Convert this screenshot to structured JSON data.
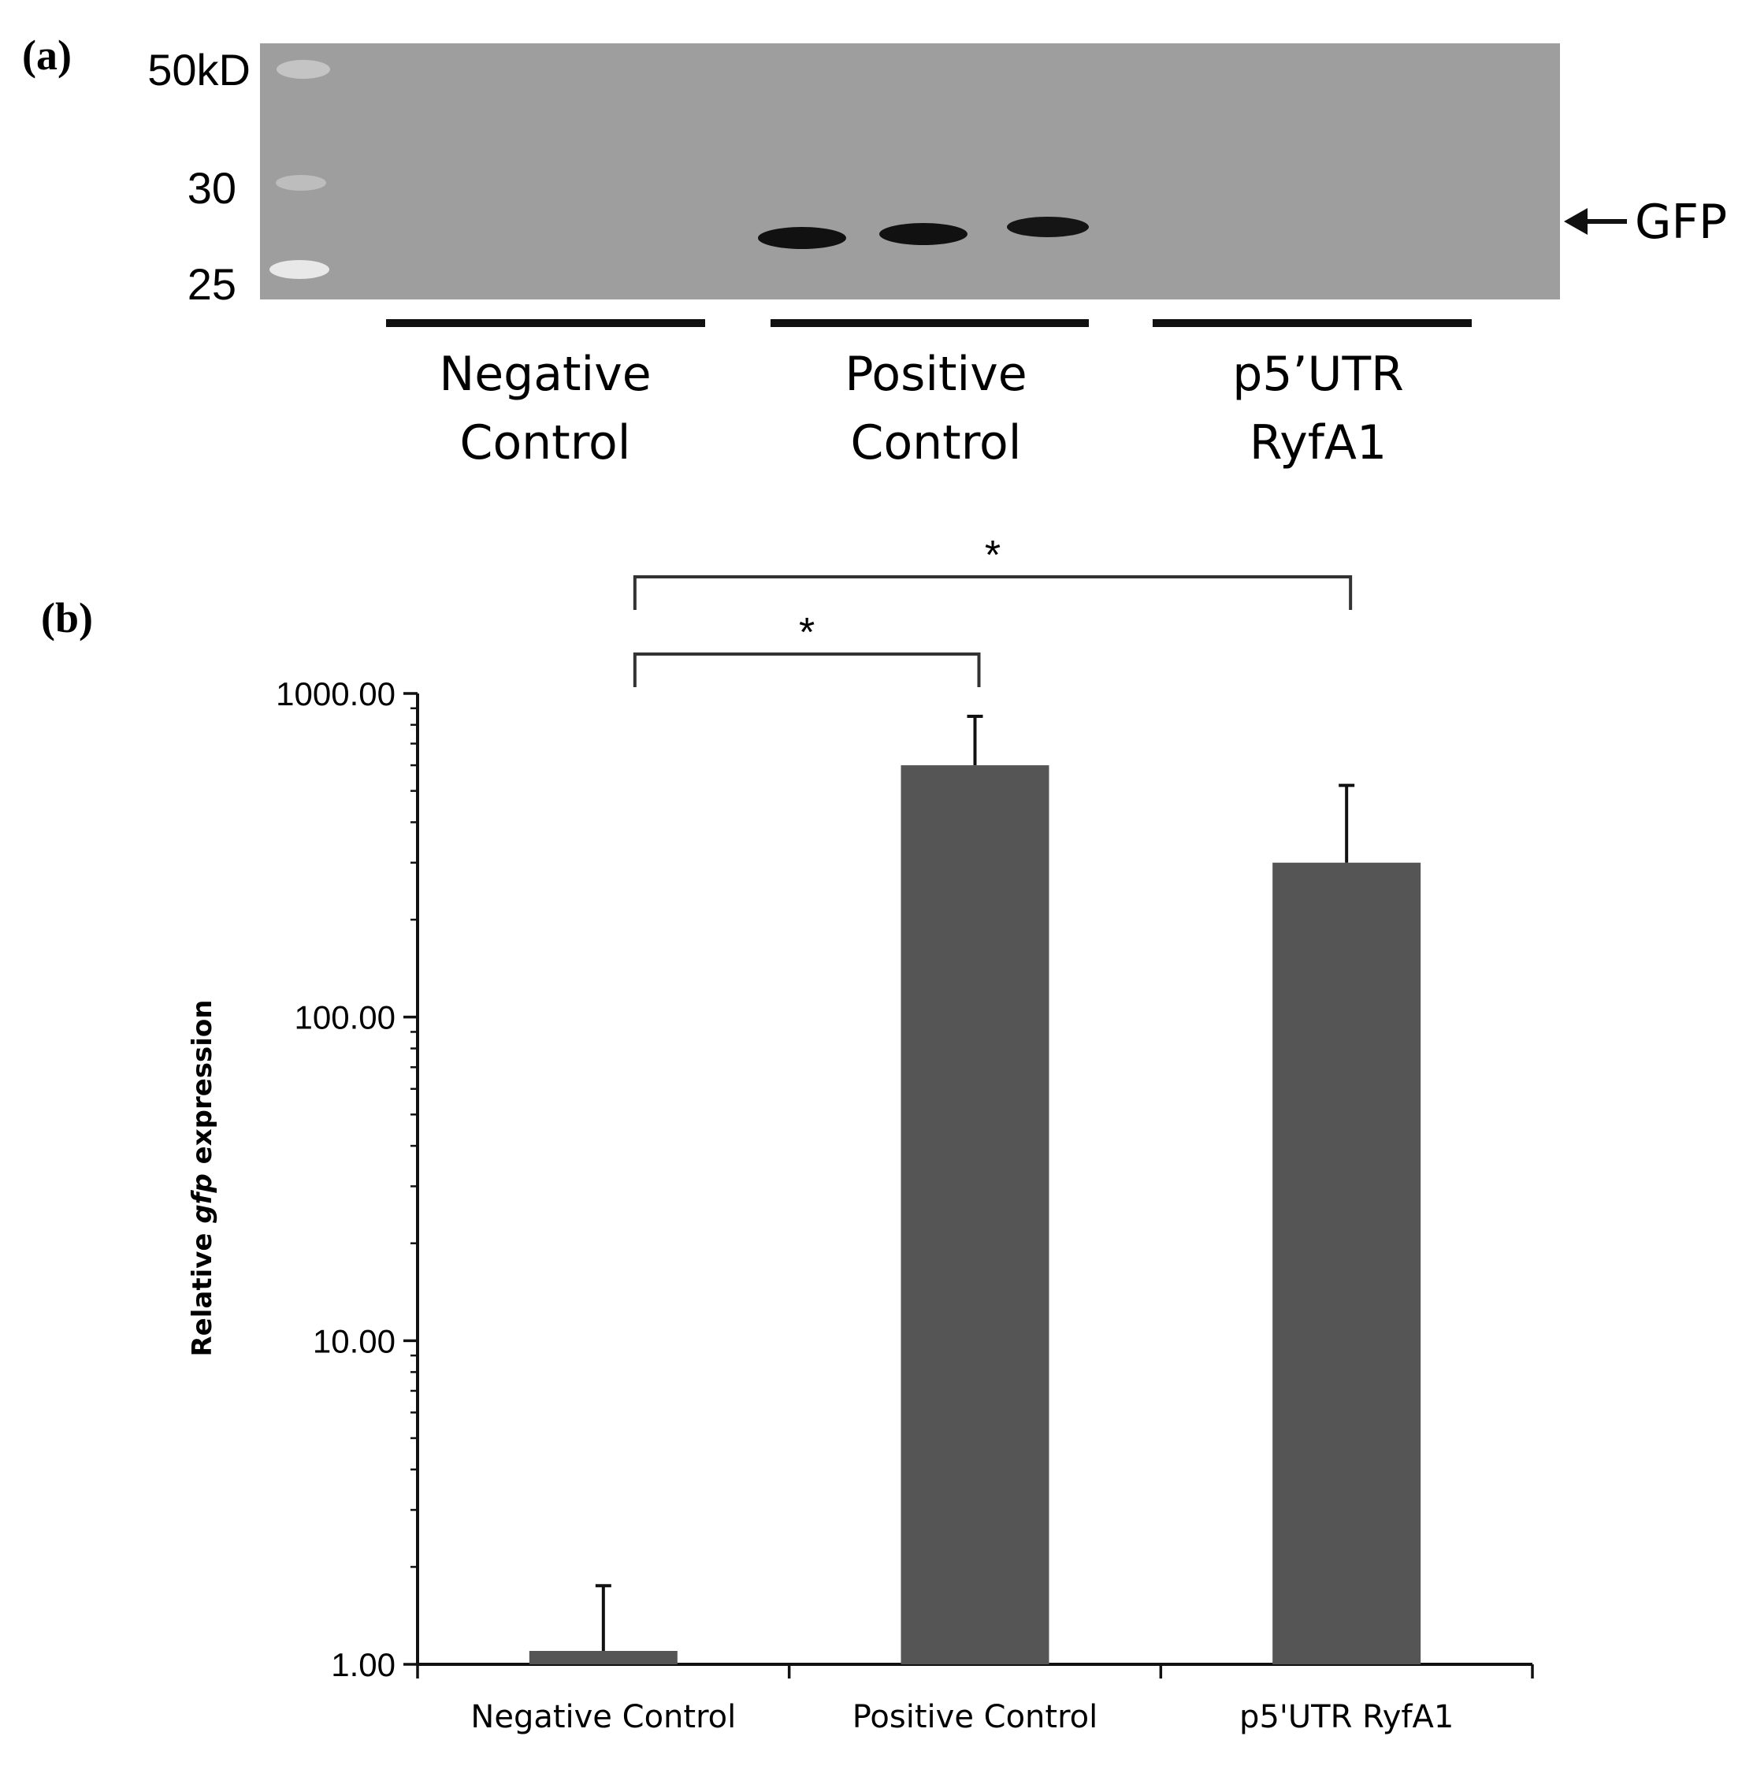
{
  "panel_a": {
    "label": "(a)",
    "markers": [
      "50kD",
      "30",
      "25"
    ],
    "band_label": "GFP",
    "groups": [
      {
        "line1": "Negative",
        "line2": "Control"
      },
      {
        "line1": "Positive",
        "line2": "Control"
      },
      {
        "line1": "p5’UTR",
        "line2": "RyfA1"
      }
    ]
  },
  "panel_b": {
    "label": "(b)"
  },
  "chart_data": {
    "type": "bar",
    "categories": [
      "Negative Control",
      "Positive Control",
      "p5'UTR RyfA1"
    ],
    "values": [
      1.1,
      600,
      300
    ],
    "error_upper": [
      1.75,
      850,
      520
    ],
    "ylabel_prefix": "Relative ",
    "ylabel_italic": "gfp",
    "ylabel_suffix": " expression",
    "yscale": "log",
    "ylim": [
      1,
      1000
    ],
    "yticks": [
      "1.00",
      "10.00",
      "100.00",
      "1000.00"
    ],
    "bar_color": "#555555",
    "grid": false,
    "significance": [
      {
        "from": 0,
        "to": 1,
        "label": "*"
      },
      {
        "from": 0,
        "to": 2,
        "label": "*"
      }
    ]
  }
}
